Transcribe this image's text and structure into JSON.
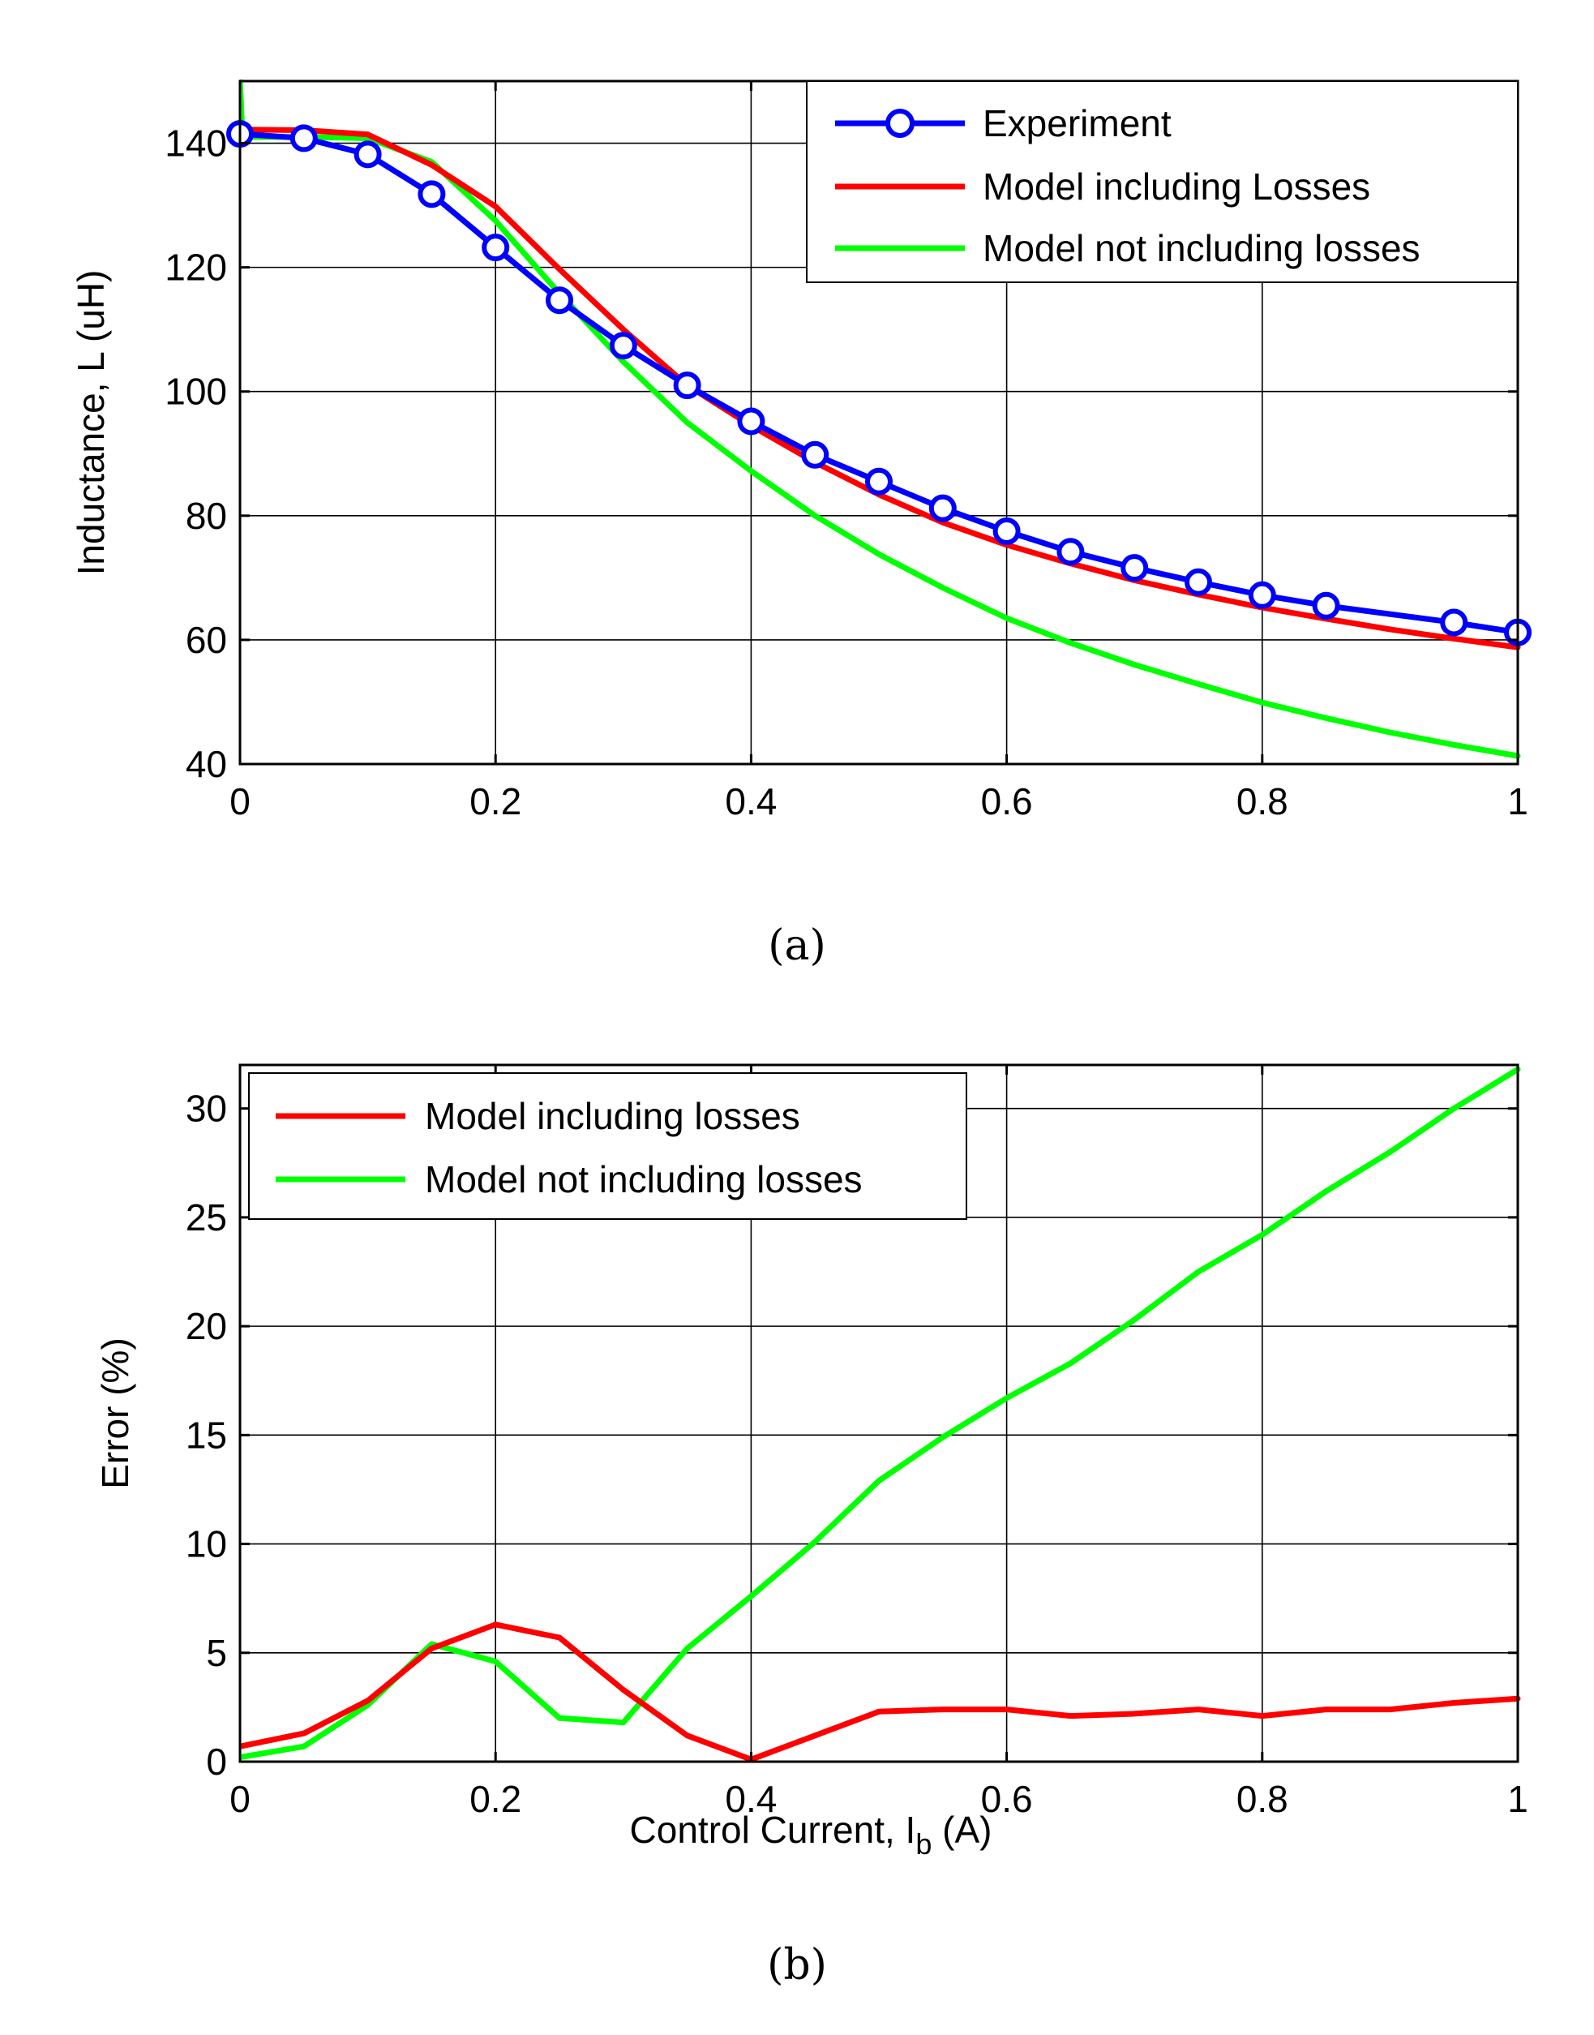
{
  "chart_data": [
    {
      "id": "a",
      "type": "line",
      "panel_label": "(a)",
      "title": "",
      "xlabel": "",
      "ylabel": "Inductance, L (uH)",
      "xlim": [
        0,
        1
      ],
      "ylim": [
        40,
        150
      ],
      "xticks": [
        0,
        0.2,
        0.4,
        0.6,
        0.8,
        1
      ],
      "xtick_labels": [
        "0",
        "0.2",
        "0.4",
        "0.6",
        "0.8",
        "1"
      ],
      "yticks": [
        40,
        60,
        80,
        100,
        120,
        140
      ],
      "ytick_labels": [
        "40",
        "60",
        "80",
        "100",
        "120",
        "140"
      ],
      "grid": true,
      "legend_position": "top-right",
      "series": [
        {
          "name": "Experiment",
          "color": "#0000ff",
          "marker": "circle",
          "x": [
            0,
            0.05,
            0.1,
            0.15,
            0.2,
            0.25,
            0.3,
            0.35,
            0.4,
            0.45,
            0.5,
            0.55,
            0.6,
            0.65,
            0.7,
            0.75,
            0.8,
            0.85,
            0.95,
            1.0
          ],
          "y": [
            141.5,
            140.8,
            138.2,
            131.8,
            123.2,
            114.7,
            107.4,
            101.0,
            95.2,
            89.8,
            85.5,
            81.2,
            77.5,
            74.2,
            71.6,
            69.3,
            67.2,
            65.5,
            62.8,
            61.2
          ]
        },
        {
          "name": "Model including Losses",
          "color": "#ff0000",
          "marker": "none",
          "x": [
            0,
            0.05,
            0.1,
            0.15,
            0.2,
            0.25,
            0.3,
            0.35,
            0.4,
            0.45,
            0.5,
            0.55,
            0.6,
            0.65,
            0.7,
            0.75,
            0.8,
            0.85,
            0.9,
            0.95,
            1.0
          ],
          "y": [
            142.2,
            142.1,
            141.4,
            136.5,
            129.8,
            119.7,
            110.0,
            101.0,
            94.5,
            88.6,
            83.4,
            78.9,
            75.3,
            72.3,
            69.6,
            67.3,
            65.2,
            63.4,
            61.7,
            60.2,
            58.8
          ]
        },
        {
          "name": "Model not including losses",
          "color": "#00ff00",
          "marker": "none",
          "x": [
            0,
            0.002,
            0.05,
            0.1,
            0.15,
            0.2,
            0.25,
            0.3,
            0.35,
            0.4,
            0.45,
            0.5,
            0.55,
            0.6,
            0.65,
            0.7,
            0.75,
            0.8,
            0.85,
            0.9,
            0.95,
            1.0
          ],
          "y": [
            150,
            141.0,
            141.0,
            140.8,
            137.0,
            127.5,
            115.8,
            104.8,
            95.0,
            87.2,
            80.0,
            73.8,
            68.4,
            63.5,
            59.5,
            56.0,
            52.9,
            49.9,
            47.4,
            45.1,
            43.1,
            41.3
          ]
        }
      ]
    },
    {
      "id": "b",
      "type": "line",
      "panel_label": "(b)",
      "title": "",
      "xlabel": "Control Current, I",
      "xlabel_subscript": "b",
      "xlabel_suffix": " (A)",
      "ylabel": "Error (%)",
      "xlim": [
        0,
        1
      ],
      "ylim": [
        0,
        32
      ],
      "xticks": [
        0,
        0.2,
        0.4,
        0.6,
        0.8,
        1
      ],
      "xtick_labels": [
        "0",
        "0.2",
        "0.4",
        "0.6",
        "0.8",
        "1"
      ],
      "yticks": [
        0,
        5,
        10,
        15,
        20,
        25,
        30
      ],
      "ytick_labels": [
        "0",
        "5",
        "10",
        "15",
        "20",
        "25",
        "30"
      ],
      "grid": true,
      "legend_position": "top-left",
      "series": [
        {
          "name": "Model including losses",
          "color": "#ff0000",
          "x": [
            0,
            0.05,
            0.1,
            0.15,
            0.2,
            0.25,
            0.3,
            0.35,
            0.4,
            0.45,
            0.5,
            0.55,
            0.6,
            0.65,
            0.7,
            0.75,
            0.8,
            0.85,
            0.9,
            0.95,
            1.0
          ],
          "y": [
            0.7,
            1.3,
            2.8,
            5.2,
            6.3,
            5.7,
            3.3,
            1.2,
            0.1,
            1.2,
            2.3,
            2.4,
            2.4,
            2.1,
            2.2,
            2.4,
            2.1,
            2.4,
            2.4,
            2.7,
            2.9
          ]
        },
        {
          "name": "Model not including losses",
          "color": "#00ff00",
          "x": [
            0,
            0.05,
            0.1,
            0.15,
            0.2,
            0.25,
            0.3,
            0.35,
            0.4,
            0.45,
            0.5,
            0.55,
            0.6,
            0.65,
            0.7,
            0.75,
            0.8,
            0.85,
            0.9,
            0.95,
            1.0
          ],
          "y": [
            0.2,
            0.7,
            2.6,
            5.4,
            4.6,
            2.0,
            1.8,
            5.2,
            7.6,
            10.1,
            12.9,
            14.9,
            16.7,
            18.3,
            20.3,
            22.5,
            24.2,
            26.2,
            28.0,
            30.0,
            31.8
          ]
        }
      ]
    }
  ]
}
